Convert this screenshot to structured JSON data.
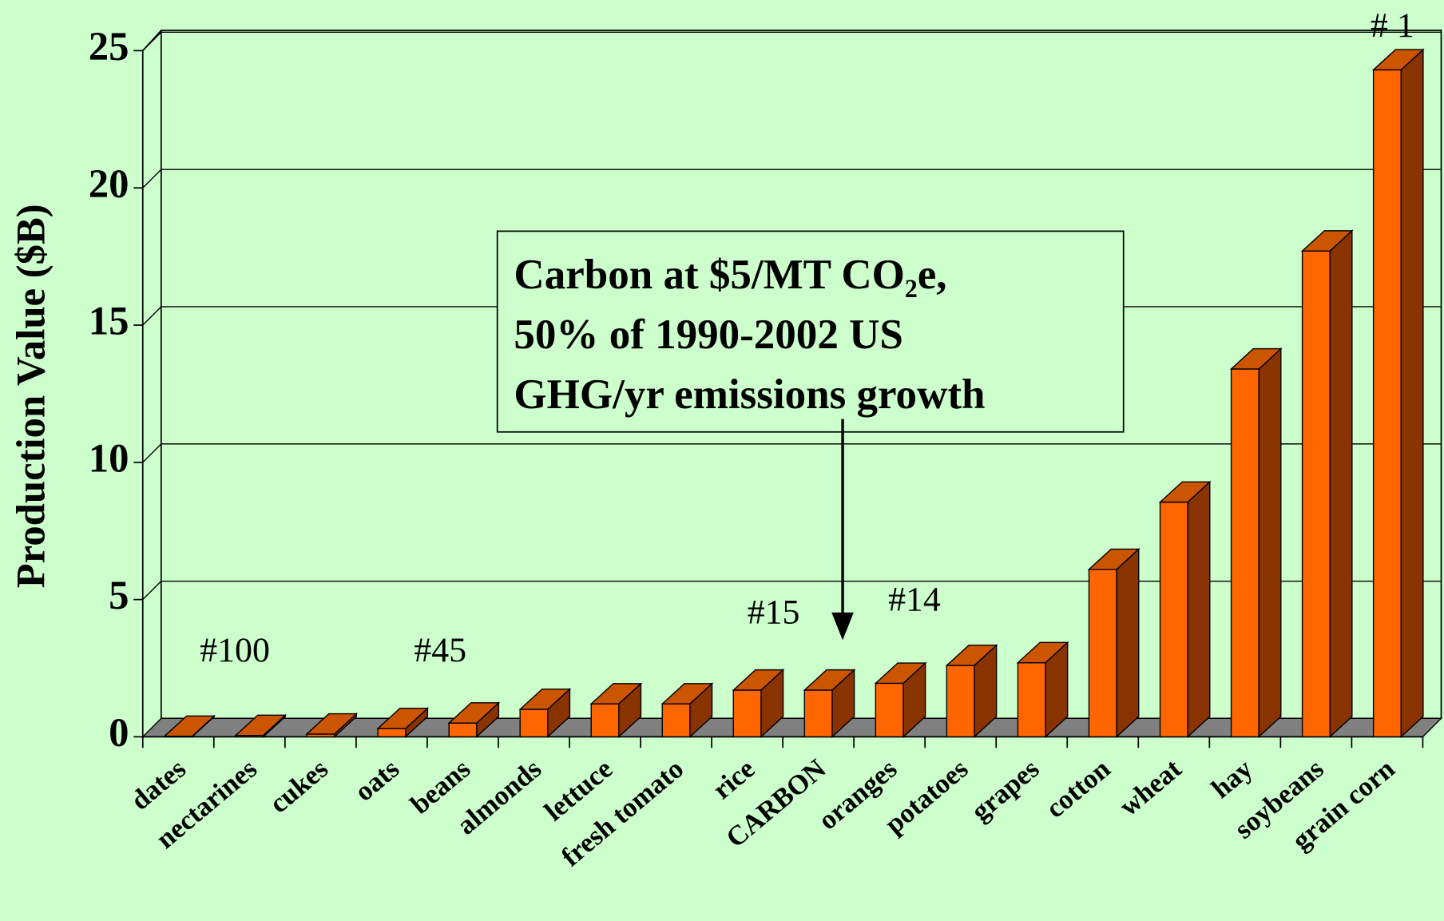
{
  "chart_data": {
    "type": "bar3d",
    "y_label": "Production Value ($B)",
    "categories": [
      "dates",
      "nectarines",
      "cukes",
      "oats",
      "beans",
      "almonds",
      "lettuce",
      "fresh tomato",
      "rice",
      "CARBON",
      "oranges",
      "potatoes",
      "grapes",
      "cotton",
      "wheat",
      "hay",
      "soybeans",
      "grain corn"
    ],
    "values": [
      0.02,
      0.05,
      0.1,
      0.3,
      0.5,
      1.0,
      1.2,
      1.2,
      1.7,
      1.7,
      1.95,
      2.6,
      2.7,
      6.1,
      8.55,
      13.4,
      17.7,
      24.3
    ],
    "color": "#ff6600",
    "ylim": [
      0,
      25
    ],
    "yticks": [
      0,
      5,
      10,
      15,
      20,
      25
    ],
    "grid": true,
    "annotations": [
      "#100",
      "#45",
      "#15",
      "#14",
      "# 1"
    ],
    "callout": [
      "Carbon at $5/MT CO₂e,",
      "50% of 1990-2002 US",
      "GHG/yr emissions growth"
    ]
  }
}
